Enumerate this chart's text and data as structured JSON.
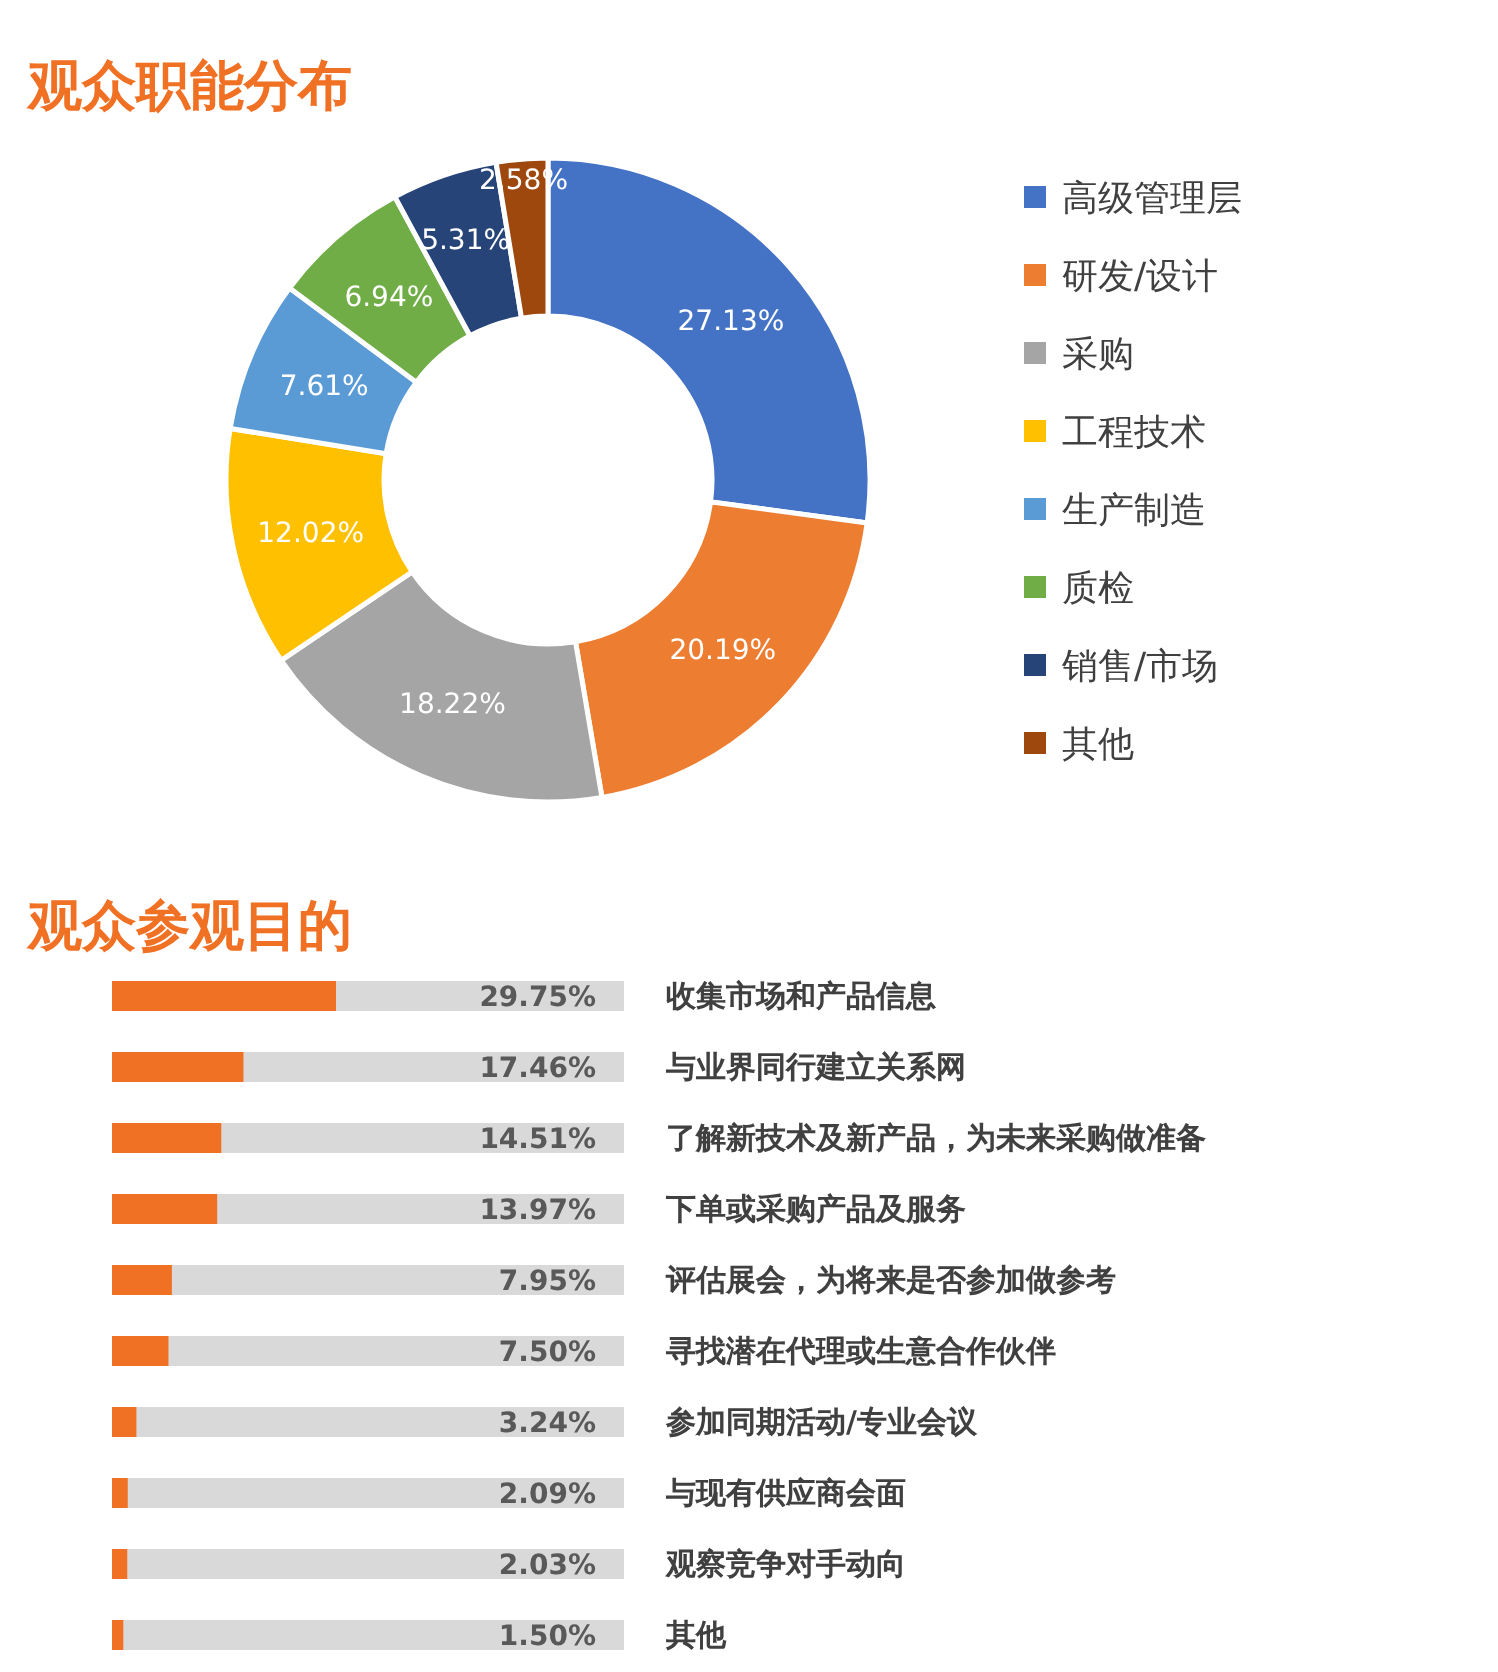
{
  "chart_data": [
    {
      "type": "donut",
      "title": "观众职能分布",
      "categories": [
        "高级管理层",
        "研发/设计",
        "采购",
        "工程技术",
        "生产制造",
        "质检",
        "销售/市场",
        "其他"
      ],
      "values": [
        27.13,
        20.19,
        18.22,
        12.02,
        7.61,
        6.94,
        5.31,
        2.58
      ],
      "value_labels": [
        "27.13%",
        "20.19%",
        "18.22%",
        "12.02%",
        "7.61%",
        "6.94%",
        "5.31%",
        "2.58%"
      ],
      "colors": [
        "#4472c4",
        "#ed7d31",
        "#a5a5a5",
        "#ffc000",
        "#5b9bd5",
        "#70ad47",
        "#264478",
        "#9e480e"
      ],
      "legend": "right"
    },
    {
      "type": "bar",
      "orientation": "horizontal",
      "title": "观众参观目的",
      "categories": [
        "收集市场和产品信息",
        "与业界同行建立关系网",
        "了解新技术及新产品，为未来采购做准备",
        "下单或采购产品及服务",
        "评估展会，为将来是否参加做参考",
        "寻找潜在代理或生意合作伙伴",
        "参加同期活动/专业会议",
        "与现有供应商会面",
        "观察竞争对手动向",
        "其他"
      ],
      "values": [
        29.75,
        17.46,
        14.51,
        13.97,
        7.95,
        7.5,
        3.24,
        2.09,
        2.03,
        1.5
      ],
      "value_labels": [
        "29.75%",
        "17.46%",
        "14.51%",
        "13.97%",
        "7.95%",
        "7.50%",
        "3.24%",
        "2.09%",
        "2.03%",
        "1.50%"
      ],
      "color": "#f07124",
      "xlim": [
        0,
        68
      ]
    }
  ]
}
